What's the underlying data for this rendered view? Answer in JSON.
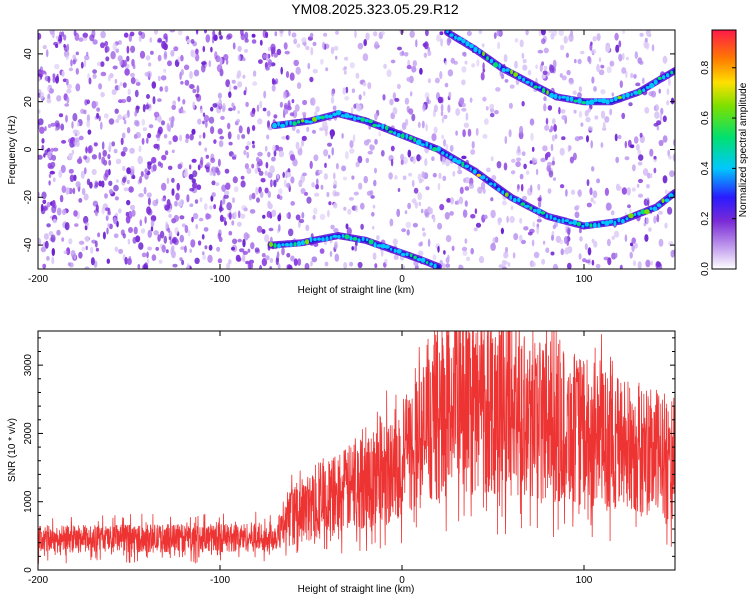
{
  "title": "YM08.2025.323.05.29.R12",
  "chart_data": [
    {
      "type": "heatmap",
      "xlabel": "Height of straight line (km)",
      "ylabel": "Frequency (Hz)",
      "xlim": [
        -200,
        150
      ],
      "ylim": [
        -50,
        50
      ],
      "xticks": [
        -200,
        -100,
        0,
        100
      ],
      "yticks": [
        -40,
        -20,
        0,
        20,
        40
      ],
      "colorbar": {
        "label": "Normalized spectral amplitude",
        "range": [
          0,
          0.95
        ],
        "ticks": [
          0.0,
          0.2,
          0.4,
          0.6,
          0.8
        ],
        "tick_labels": [
          "0.0",
          "0.2",
          "0.4",
          "0.6",
          "0.8"
        ]
      },
      "ridges": [
        {
          "x": [
            -70,
            -50,
            -35,
            -20,
            0,
            20,
            40,
            60,
            80,
            100,
            120,
            140,
            150
          ],
          "y": [
            10,
            12,
            15,
            12,
            6,
            0,
            -9,
            -20,
            -28,
            -32,
            -30,
            -24,
            -18
          ]
        },
        {
          "x": [
            -72,
            -55,
            -35,
            -20,
            -5,
            10,
            20
          ],
          "y": [
            -40,
            -39,
            -36,
            -38,
            -42,
            -46,
            -49
          ]
        },
        {
          "x": [
            25,
            40,
            55,
            70,
            85,
            100,
            115,
            130,
            150
          ],
          "y": [
            49,
            42,
            34,
            28,
            22,
            20,
            20,
            24,
            33
          ]
        }
      ]
    },
    {
      "type": "line",
      "xlabel": "Height of straight line (km)",
      "ylabel": "SNR (10 * v/v)",
      "xlim": [
        -200,
        150
      ],
      "ylim": [
        0,
        3500
      ],
      "xticks": [
        -200,
        -100,
        0,
        100
      ],
      "yticks": [
        0,
        1000,
        2000,
        3000
      ],
      "series": [
        {
          "color": "#ee3333",
          "envelope_x": [
            -200,
            -150,
            -100,
            -70,
            -60,
            -40,
            -20,
            0,
            10,
            20,
            30,
            40,
            50,
            60,
            80,
            100,
            120,
            140,
            150
          ],
          "envelope_y": [
            450,
            460,
            470,
            490,
            800,
            1050,
            1300,
            1600,
            1900,
            2300,
            2450,
            2500,
            2480,
            2400,
            2200,
            2000,
            1850,
            1700,
            1650
          ]
        }
      ]
    }
  ]
}
